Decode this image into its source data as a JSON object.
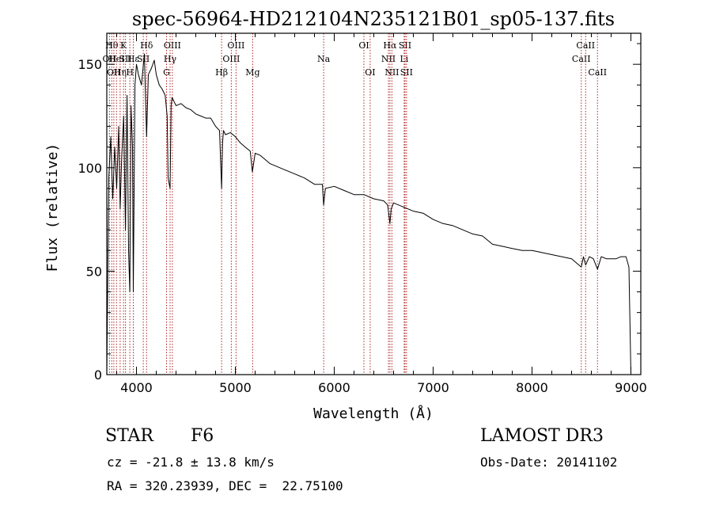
{
  "chart_data": {
    "type": "line",
    "title": "spec-56964-HD212104N235121B01_sp05-137.fits",
    "xlabel": "Wavelength (Å)",
    "ylabel": "Flux (relative)",
    "xlim": [
      3700,
      9100
    ],
    "ylim": [
      0,
      165
    ],
    "xticks": [
      4000,
      5000,
      6000,
      7000,
      8000,
      9000
    ],
    "yticks": [
      0,
      50,
      100,
      150
    ],
    "series": [
      {
        "name": "spectrum",
        "x": [
          3700,
          3720,
          3740,
          3760,
          3780,
          3800,
          3820,
          3835,
          3850,
          3870,
          3889,
          3905,
          3920,
          3933,
          3945,
          3960,
          3968,
          3985,
          4000,
          4020,
          4050,
          4080,
          4102,
          4120,
          4150,
          4180,
          4200,
          4230,
          4260,
          4290,
          4310,
          4320,
          4340,
          4350,
          4360,
          4380,
          4400,
          4450,
          4500,
          4550,
          4600,
          4650,
          4700,
          4750,
          4800,
          4840,
          4861,
          4870,
          4880,
          4900,
          4950,
          5000,
          5050,
          5100,
          5150,
          5172,
          5200,
          5250,
          5300,
          5350,
          5400,
          5500,
          5600,
          5700,
          5800,
          5880,
          5893,
          5910,
          6000,
          6100,
          6200,
          6300,
          6400,
          6500,
          6540,
          6563,
          6575,
          6600,
          6700,
          6800,
          6900,
          7000,
          7100,
          7200,
          7300,
          7400,
          7500,
          7600,
          7700,
          7800,
          7900,
          8000,
          8100,
          8200,
          8300,
          8400,
          8498,
          8520,
          8542,
          8580,
          8620,
          8662,
          8700,
          8750,
          8800,
          8850,
          8900,
          8950,
          8980,
          9000
        ],
        "values": [
          0,
          95,
          115,
          85,
          110,
          90,
          120,
          80,
          105,
          125,
          70,
          135,
          60,
          40,
          130,
          110,
          40,
          140,
          150,
          145,
          140,
          155,
          115,
          145,
          148,
          152,
          145,
          140,
          138,
          135,
          125,
          95,
          90,
          130,
          134,
          132,
          130,
          131,
          129,
          128,
          126,
          125,
          124,
          124,
          120,
          118,
          90,
          112,
          118,
          116,
          117,
          115,
          112,
          110,
          108,
          98,
          107,
          106,
          104,
          102,
          101,
          99,
          97,
          95,
          92,
          92,
          82,
          90,
          91,
          89,
          87,
          87,
          85,
          84,
          82,
          73,
          80,
          83,
          81,
          79,
          78,
          75,
          73,
          72,
          70,
          68,
          67,
          63,
          62,
          61,
          60,
          60,
          59,
          58,
          57,
          56,
          52,
          57,
          53,
          57,
          56,
          51,
          57,
          56,
          56,
          56,
          57,
          57,
          52,
          0
        ]
      }
    ],
    "line_markers": [
      {
        "wavelength": 3727,
        "label": "OII",
        "row": 2
      },
      {
        "wavelength": 3750,
        "label": "Hθ",
        "row": 1
      },
      {
        "wavelength": 3771,
        "label": "OII",
        "row": 3
      },
      {
        "wavelength": 3798,
        "label": "HeI",
        "row": 2
      },
      {
        "wavelength": 3835,
        "label": "Hη",
        "row": 3
      },
      {
        "wavelength": 3869,
        "label": "K",
        "row": 1
      },
      {
        "wavelength": 3889,
        "label": "SII",
        "row": 2
      },
      {
        "wavelength": 3933,
        "label": "H",
        "row": 3
      },
      {
        "wavelength": 3968,
        "label": "Hε",
        "row": 2
      },
      {
        "wavelength": 4069,
        "label": "SII",
        "row": 2
      },
      {
        "wavelength": 4102,
        "label": "Hδ",
        "row": 1
      },
      {
        "wavelength": 4304,
        "label": "G",
        "row": 3
      },
      {
        "wavelength": 4340,
        "label": "Hγ",
        "row": 2
      },
      {
        "wavelength": 4363,
        "label": "OIII",
        "row": 1
      },
      {
        "wavelength": 4861,
        "label": "Hβ",
        "row": 3
      },
      {
        "wavelength": 4959,
        "label": "OIII",
        "row": 2
      },
      {
        "wavelength": 5007,
        "label": "OIII",
        "row": 1
      },
      {
        "wavelength": 5175,
        "label": "Mg",
        "row": 3
      },
      {
        "wavelength": 5893,
        "label": "Na",
        "row": 2
      },
      {
        "wavelength": 6300,
        "label": "OI",
        "row": 1
      },
      {
        "wavelength": 6363,
        "label": "OI",
        "row": 3
      },
      {
        "wavelength": 6548,
        "label": "NII",
        "row": 2
      },
      {
        "wavelength": 6563,
        "label": "Hα",
        "row": 1
      },
      {
        "wavelength": 6583,
        "label": "NII",
        "row": 3
      },
      {
        "wavelength": 6707,
        "label": "Li",
        "row": 2
      },
      {
        "wavelength": 6716,
        "label": "SII",
        "row": 1
      },
      {
        "wavelength": 6731,
        "label": "SII",
        "row": 3
      },
      {
        "wavelength": 8498,
        "label": "CaII",
        "row": 2
      },
      {
        "wavelength": 8542,
        "label": "CaII",
        "row": 1
      },
      {
        "wavelength": 8662,
        "label": "CaII",
        "row": 3
      }
    ],
    "colors": {
      "line": "#000000",
      "marker": "#b22222",
      "axes": "#000000"
    }
  },
  "footer": {
    "object_class": "STAR",
    "subclass": "F6",
    "survey": "LAMOST DR3",
    "cz": "cz = -21.8 ± 13.8 km/s",
    "obs_date": "Obs-Date: 20141102",
    "coords": "RA = 320.23939, DEC =  22.75100"
  }
}
